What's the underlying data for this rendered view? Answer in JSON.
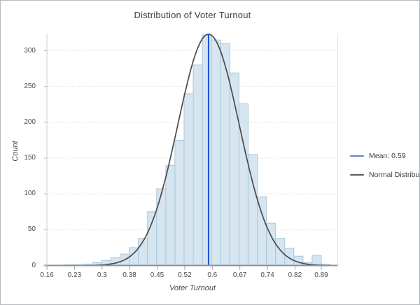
{
  "title": "Distribution of Voter Turnout",
  "axes": {
    "x_label": "Voter Turnout",
    "y_label": "Count",
    "x_ticks": [
      {
        "label": "0.16",
        "value": 0.16
      },
      {
        "label": "0.23",
        "value": 0.2333
      },
      {
        "label": "0.3",
        "value": 0.3067
      },
      {
        "label": "0.38",
        "value": 0.38
      },
      {
        "label": "0.45",
        "value": 0.4533
      },
      {
        "label": "0.52",
        "value": 0.5267
      },
      {
        "label": "0.6",
        "value": 0.6
      },
      {
        "label": "0.67",
        "value": 0.6733
      },
      {
        "label": "0.74",
        "value": 0.7467
      },
      {
        "label": "0.82",
        "value": 0.82
      },
      {
        "label": "0.89",
        "value": 0.89
      }
    ],
    "y_ticks": [
      {
        "label": "0",
        "value": 0
      },
      {
        "label": "50",
        "value": 50
      },
      {
        "label": "100",
        "value": 100
      },
      {
        "label": "150",
        "value": 150
      },
      {
        "label": "200",
        "value": 200
      },
      {
        "label": "250",
        "value": 250
      },
      {
        "label": "300",
        "value": 300
      }
    ]
  },
  "legend": {
    "items": [
      {
        "label": "Mean: 0.59",
        "color": "#5585d4"
      },
      {
        "label": "Normal Distribution",
        "color": "#5a5a5a"
      }
    ]
  },
  "chart_data": {
    "type": "histogram",
    "title": "Distribution of Voter Turnout",
    "xlabel": "Voter Turnout",
    "ylabel": "Count",
    "xlim": [
      0.16,
      0.935
    ],
    "ylim": [
      0,
      324
    ],
    "grid": "horizontal-dotted",
    "legend_position": "right-outside",
    "bin_start": 0.16,
    "bin_width": 0.024333,
    "counts": [
      0,
      0,
      1,
      1,
      2,
      4,
      7,
      11,
      16,
      25,
      38,
      75,
      107,
      140,
      175,
      240,
      280,
      322,
      315,
      310,
      269,
      226,
      155,
      96,
      59,
      38,
      24,
      13,
      4,
      14,
      2
    ],
    "mean_line": {
      "x": 0.59,
      "label": "Mean: 0.59",
      "color": "#1450d2"
    },
    "normal_curve": {
      "label": "Normal Distribution",
      "mu": 0.59,
      "sigma": 0.082,
      "peak": 323,
      "color": "#4b4b4b"
    },
    "bar_fill": "#d6e5f0",
    "bar_stroke": "#a9c9de",
    "gridline_color": "#e3e3e3",
    "axis_color": "#8e9297"
  }
}
